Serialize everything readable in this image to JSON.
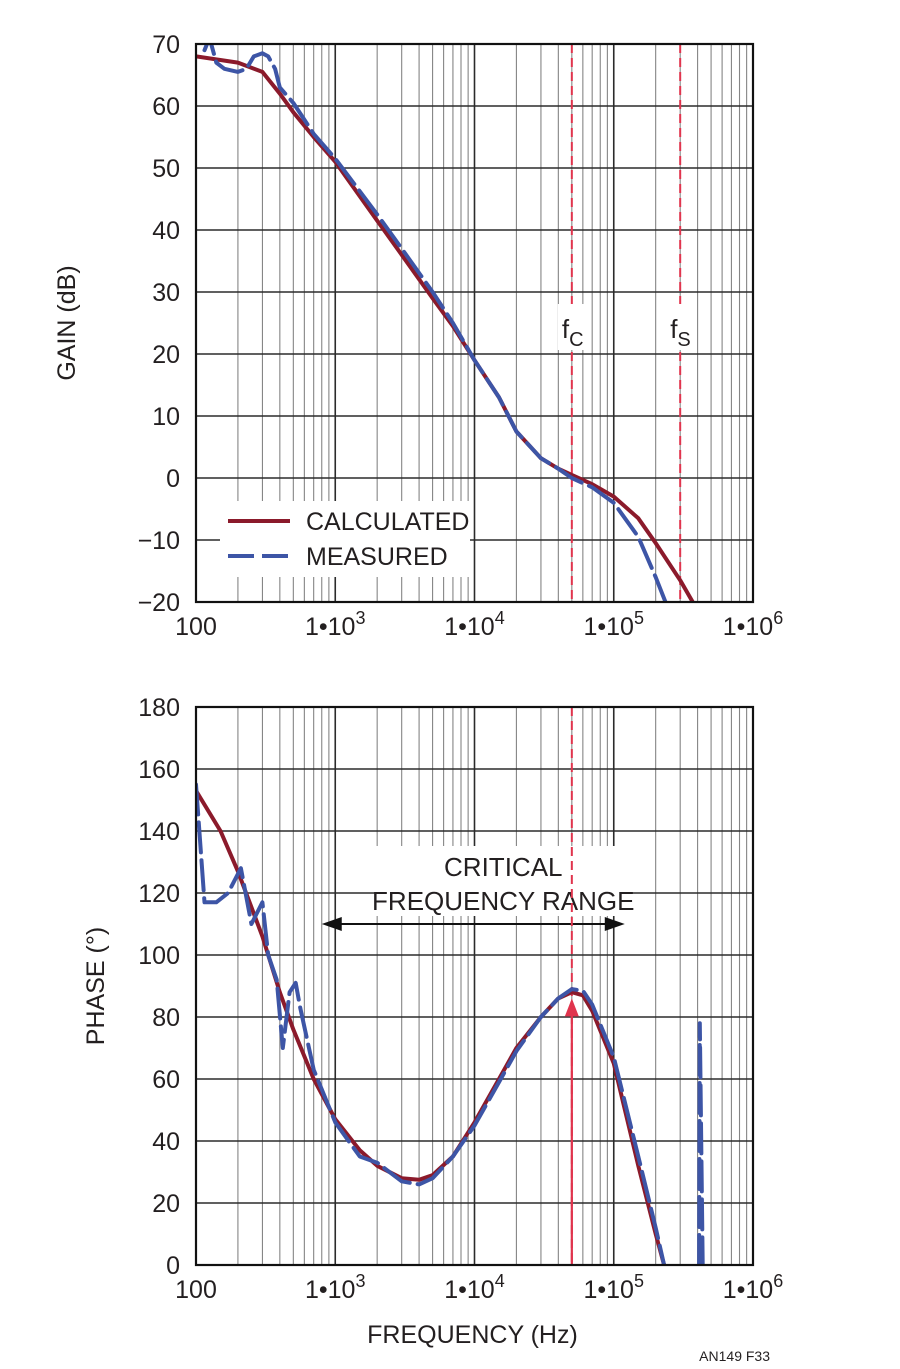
{
  "chart_data": [
    {
      "type": "line",
      "xscale": "log",
      "xlim": [
        100,
        1000000
      ],
      "ylim": [
        -20,
        70
      ],
      "ylabel": "GAIN (dB)",
      "xlabel": "",
      "grid": true,
      "legend_position": "bottom-left",
      "y_ticks": [
        "70",
        "60",
        "50",
        "40",
        "30",
        "20",
        "10",
        "0",
        "−10",
        "−20"
      ],
      "x_tick_labels": [
        {
          "x": 100,
          "base": "100",
          "exp": ""
        },
        {
          "x": 1000,
          "base": "1•10",
          "exp": "3"
        },
        {
          "x": 10000,
          "base": "1•10",
          "exp": "4"
        },
        {
          "x": 100000,
          "base": "1•10",
          "exp": "5"
        },
        {
          "x": 1000000,
          "base": "1•10",
          "exp": "6"
        }
      ],
      "markers": [
        {
          "x": 50000,
          "label": "f",
          "sub": "C",
          "color": "#e0344d"
        },
        {
          "x": 300000,
          "label": "f",
          "sub": "S",
          "color": "#e0344d"
        }
      ],
      "series": [
        {
          "name": "CALCULATED",
          "color": "#8b1a2b",
          "style": "solid",
          "points": [
            [
              100,
              68
            ],
            [
              200,
              67
            ],
            [
              300,
              65.5
            ],
            [
              400,
              62
            ],
            [
              500,
              59
            ],
            [
              700,
              55
            ],
            [
              1000,
              51
            ],
            [
              2000,
              41.5
            ],
            [
              3000,
              36
            ],
            [
              5000,
              29
            ],
            [
              7000,
              24.5
            ],
            [
              10000,
              19
            ],
            [
              15000,
              13
            ],
            [
              20000,
              7.5
            ],
            [
              30000,
              3.2
            ],
            [
              40000,
              1.5
            ],
            [
              50000,
              0.5
            ],
            [
              70000,
              -1
            ],
            [
              100000,
              -3
            ],
            [
              150000,
              -6.5
            ],
            [
              200000,
              -10.5
            ],
            [
              300000,
              -16.5
            ],
            [
              380000,
              -20.5
            ]
          ]
        },
        {
          "name": "MEASURED",
          "color": "#3d55a6",
          "style": "dashed",
          "points": [
            [
              115,
              69
            ],
            [
              125,
              71
            ],
            [
              140,
              67
            ],
            [
              160,
              66
            ],
            [
              200,
              65.5
            ],
            [
              230,
              66
            ],
            [
              260,
              68
            ],
            [
              300,
              68.5
            ],
            [
              330,
              68
            ],
            [
              370,
              66
            ],
            [
              400,
              63
            ],
            [
              500,
              60.5
            ],
            [
              700,
              55.5
            ],
            [
              1000,
              51.5
            ],
            [
              2000,
              42.5
            ],
            [
              3000,
              37
            ],
            [
              5000,
              30
            ],
            [
              7000,
              25
            ],
            [
              10000,
              19
            ],
            [
              15000,
              13
            ],
            [
              20000,
              7.5
            ],
            [
              30000,
              3.2
            ],
            [
              40000,
              1.5
            ],
            [
              50000,
              0
            ],
            [
              70000,
              -1.5
            ],
            [
              100000,
              -4
            ],
            [
              150000,
              -9.5
            ],
            [
              200000,
              -16
            ],
            [
              240000,
              -20.5
            ]
          ]
        }
      ]
    },
    {
      "type": "line",
      "xscale": "log",
      "xlim": [
        100,
        1000000
      ],
      "ylim": [
        0,
        180
      ],
      "ylabel": "PHASE (°)",
      "xlabel": "FREQUENCY (Hz)",
      "grid": true,
      "y_ticks": [
        "180",
        "160",
        "140",
        "120",
        "100",
        "80",
        "60",
        "40",
        "20",
        "0"
      ],
      "x_tick_labels": [
        {
          "x": 100,
          "base": "100",
          "exp": ""
        },
        {
          "x": 1000,
          "base": "1•10",
          "exp": "3"
        },
        {
          "x": 10000,
          "base": "1•10",
          "exp": "4"
        },
        {
          "x": 100000,
          "base": "1•10",
          "exp": "5"
        },
        {
          "x": 1000000,
          "base": "1•10",
          "exp": "6"
        }
      ],
      "markers": [
        {
          "x": 50000,
          "label": "",
          "sub": "",
          "color": "#e0344d"
        }
      ],
      "annotations": [
        {
          "text_line1": "CRITICAL",
          "text_line2": "FREQUENCY RANGE",
          "x_from": 800,
          "x_to": 120000,
          "y": 110
        }
      ],
      "arrow_to_peak": {
        "x": 50000,
        "y": 86
      },
      "series": [
        {
          "name": "CALCULATED",
          "color": "#8b1a2b",
          "style": "solid",
          "points": [
            [
              100,
              153
            ],
            [
              150,
              140
            ],
            [
              200,
              127
            ],
            [
              300,
              106
            ],
            [
              400,
              88
            ],
            [
              500,
              76
            ],
            [
              700,
              60
            ],
            [
              1000,
              47
            ],
            [
              1500,
              37
            ],
            [
              2000,
              32
            ],
            [
              3000,
              28
            ],
            [
              4000,
              27.5
            ],
            [
              5000,
              29
            ],
            [
              7000,
              35
            ],
            [
              10000,
              46
            ],
            [
              15000,
              60
            ],
            [
              20000,
              70
            ],
            [
              30000,
              80
            ],
            [
              40000,
              86
            ],
            [
              50000,
              88
            ],
            [
              60000,
              87
            ],
            [
              70000,
              82
            ],
            [
              100000,
              65
            ],
            [
              150000,
              32
            ],
            [
              200000,
              10
            ],
            [
              230000,
              0
            ]
          ]
        },
        {
          "name": "MEASURED",
          "color": "#3d55a6",
          "style": "dashed",
          "points": [
            [
              100,
              155
            ],
            [
              115,
              117
            ],
            [
              140,
              117
            ],
            [
              170,
              120
            ],
            [
              210,
              128
            ],
            [
              250,
              110
            ],
            [
              300,
              117
            ],
            [
              330,
              100
            ],
            [
              380,
              92
            ],
            [
              420,
              70
            ],
            [
              470,
              88
            ],
            [
              520,
              91
            ],
            [
              560,
              83
            ],
            [
              700,
              63
            ],
            [
              1000,
              46
            ],
            [
              1500,
              35
            ],
            [
              2000,
              33
            ],
            [
              3000,
              27
            ],
            [
              4000,
              26
            ],
            [
              5000,
              28
            ],
            [
              7000,
              35
            ],
            [
              10000,
              45
            ],
            [
              15000,
              59
            ],
            [
              20000,
              69
            ],
            [
              30000,
              80
            ],
            [
              40000,
              86
            ],
            [
              50000,
              89
            ],
            [
              60000,
              88.5
            ],
            [
              70000,
              84
            ],
            [
              100000,
              67
            ],
            [
              150000,
              35
            ],
            [
              200000,
              12
            ],
            [
              230000,
              0
            ]
          ]
        },
        {
          "name": "MEASURED",
          "color": "#3d55a6",
          "style": "dashed",
          "legend": false,
          "points": [
            [
              410000,
              0
            ],
            [
              415000,
              78
            ],
            [
              435000,
              0
            ]
          ]
        }
      ]
    }
  ],
  "footer_code": "AN149 F33"
}
